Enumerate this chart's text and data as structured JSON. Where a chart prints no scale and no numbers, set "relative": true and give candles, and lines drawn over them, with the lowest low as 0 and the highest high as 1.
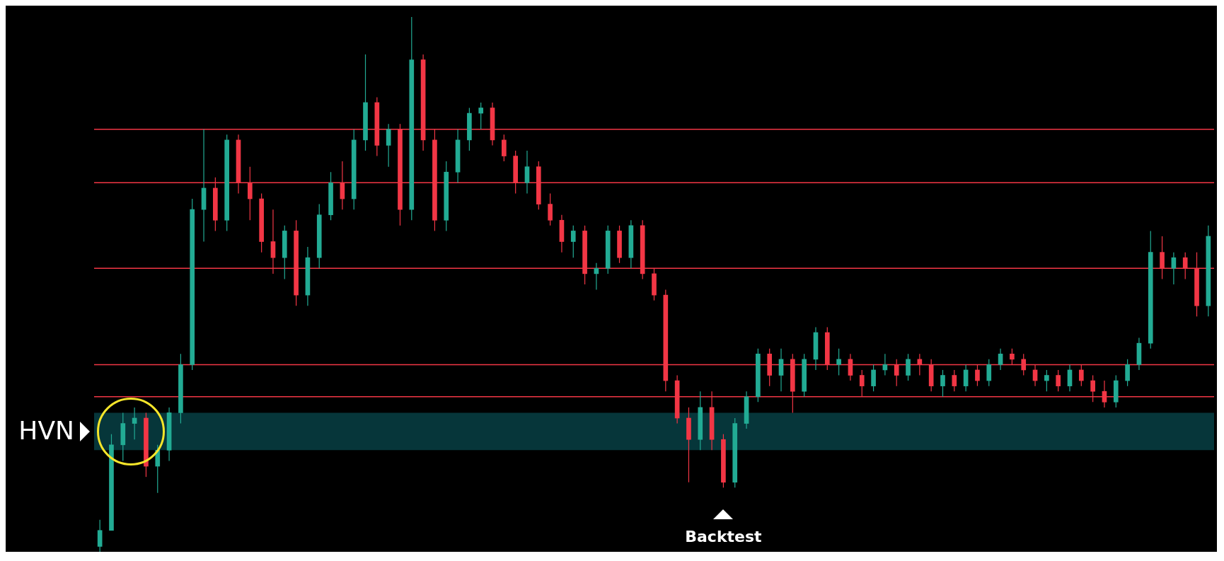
{
  "chart_data": {
    "type": "candlestick",
    "relative": true,
    "tick_labels": false,
    "categories": [
      null,
      null,
      null,
      null,
      null,
      null,
      null,
      null,
      null,
      null,
      null,
      null,
      null,
      null,
      null,
      null,
      null,
      null,
      null,
      null,
      null,
      null,
      null,
      null,
      null,
      null,
      null,
      null,
      null,
      null,
      null,
      null,
      null,
      null,
      null,
      null,
      null,
      null,
      null,
      null,
      null,
      null,
      null,
      null,
      null,
      null,
      null,
      null,
      null,
      null,
      null,
      null,
      null,
      null,
      null,
      null,
      null,
      null,
      null,
      null,
      null,
      null,
      null,
      null,
      null,
      null,
      null,
      null,
      null,
      null,
      null,
      null,
      null,
      null,
      null,
      null,
      null,
      null,
      null,
      null,
      null,
      null,
      null,
      null,
      null,
      null,
      null,
      null,
      null,
      null,
      null,
      null,
      null,
      null,
      null,
      null,
      null
    ],
    "ohlc": [
      [
        0.01,
        0.06,
        0,
        0.04
      ],
      [
        0.04,
        0.22,
        0.04,
        0.2
      ],
      [
        0.2,
        0.26,
        0.17,
        0.24
      ],
      [
        0.24,
        0.27,
        0.21,
        0.25
      ],
      [
        0.25,
        0.26,
        0.14,
        0.16
      ],
      [
        0.16,
        0.2,
        0.11,
        0.19
      ],
      [
        0.19,
        0.27,
        0.17,
        0.26
      ],
      [
        0.26,
        0.37,
        0.24,
        0.35
      ],
      [
        0.35,
        0.66,
        0.34,
        0.64
      ],
      [
        0.64,
        0.79,
        0.58,
        0.68
      ],
      [
        0.68,
        0.7,
        0.6,
        0.62
      ],
      [
        0.62,
        0.78,
        0.6,
        0.77
      ],
      [
        0.77,
        0.78,
        0.67,
        0.69
      ],
      [
        0.69,
        0.72,
        0.62,
        0.66
      ],
      [
        0.66,
        0.67,
        0.56,
        0.58
      ],
      [
        0.58,
        0.64,
        0.52,
        0.55
      ],
      [
        0.55,
        0.61,
        0.51,
        0.6
      ],
      [
        0.6,
        0.62,
        0.46,
        0.48
      ],
      [
        0.48,
        0.57,
        0.46,
        0.55
      ],
      [
        0.55,
        0.65,
        0.53,
        0.63
      ],
      [
        0.63,
        0.71,
        0.62,
        0.69
      ],
      [
        0.69,
        0.73,
        0.64,
        0.66
      ],
      [
        0.66,
        0.79,
        0.64,
        0.77
      ],
      [
        0.77,
        0.93,
        0.75,
        0.84
      ],
      [
        0.84,
        0.85,
        0.74,
        0.76
      ],
      [
        0.76,
        0.8,
        0.72,
        0.79
      ],
      [
        0.79,
        0.8,
        0.61,
        0.64
      ],
      [
        0.64,
        1.0,
        0.62,
        0.92
      ],
      [
        0.92,
        0.93,
        0.75,
        0.77
      ],
      [
        0.77,
        0.79,
        0.6,
        0.62
      ],
      [
        0.62,
        0.73,
        0.6,
        0.71
      ],
      [
        0.71,
        0.79,
        0.69,
        0.77
      ],
      [
        0.77,
        0.83,
        0.75,
        0.82
      ],
      [
        0.82,
        0.84,
        0.79,
        0.83
      ],
      [
        0.83,
        0.84,
        0.76,
        0.77
      ],
      [
        0.77,
        0.78,
        0.73,
        0.74
      ],
      [
        0.74,
        0.75,
        0.67,
        0.69
      ],
      [
        0.69,
        0.75,
        0.67,
        0.72
      ],
      [
        0.72,
        0.73,
        0.64,
        0.65
      ],
      [
        0.65,
        0.67,
        0.61,
        0.62
      ],
      [
        0.62,
        0.63,
        0.56,
        0.58
      ],
      [
        0.58,
        0.61,
        0.55,
        0.6
      ],
      [
        0.6,
        0.61,
        0.5,
        0.52
      ],
      [
        0.52,
        0.54,
        0.49,
        0.53
      ],
      [
        0.53,
        0.61,
        0.52,
        0.6
      ],
      [
        0.6,
        0.61,
        0.54,
        0.55
      ],
      [
        0.55,
        0.62,
        0.53,
        0.61
      ],
      [
        0.61,
        0.62,
        0.51,
        0.52
      ],
      [
        0.52,
        0.53,
        0.47,
        0.48
      ],
      [
        0.48,
        0.49,
        0.3,
        0.32
      ],
      [
        0.32,
        0.33,
        0.24,
        0.25
      ],
      [
        0.25,
        0.27,
        0.13,
        0.21
      ],
      [
        0.21,
        0.3,
        0.19,
        0.27
      ],
      [
        0.27,
        0.3,
        0.19,
        0.21
      ],
      [
        0.21,
        0.22,
        0.12,
        0.13
      ],
      [
        0.13,
        0.25,
        0.12,
        0.24
      ],
      [
        0.24,
        0.3,
        0.23,
        0.29
      ],
      [
        0.29,
        0.38,
        0.28,
        0.37
      ],
      [
        0.37,
        0.38,
        0.31,
        0.33
      ],
      [
        0.33,
        0.38,
        0.3,
        0.36
      ],
      [
        0.36,
        0.37,
        0.26,
        0.3
      ],
      [
        0.3,
        0.37,
        0.29,
        0.36
      ],
      [
        0.36,
        0.42,
        0.34,
        0.41
      ],
      [
        0.41,
        0.42,
        0.34,
        0.35
      ],
      [
        0.35,
        0.38,
        0.33,
        0.36
      ],
      [
        0.36,
        0.37,
        0.32,
        0.33
      ],
      [
        0.33,
        0.34,
        0.29,
        0.31
      ],
      [
        0.31,
        0.35,
        0.3,
        0.34
      ],
      [
        0.34,
        0.37,
        0.33,
        0.35
      ],
      [
        0.35,
        0.36,
        0.31,
        0.33
      ],
      [
        0.33,
        0.37,
        0.32,
        0.36
      ],
      [
        0.36,
        0.37,
        0.33,
        0.35
      ],
      [
        0.35,
        0.36,
        0.3,
        0.31
      ],
      [
        0.31,
        0.34,
        0.29,
        0.33
      ],
      [
        0.33,
        0.34,
        0.3,
        0.31
      ],
      [
        0.31,
        0.35,
        0.3,
        0.34
      ],
      [
        0.34,
        0.35,
        0.31,
        0.32
      ],
      [
        0.32,
        0.36,
        0.31,
        0.35
      ],
      [
        0.35,
        0.38,
        0.34,
        0.37
      ],
      [
        0.37,
        0.38,
        0.35,
        0.36
      ],
      [
        0.36,
        0.37,
        0.33,
        0.34
      ],
      [
        0.34,
        0.35,
        0.31,
        0.32
      ],
      [
        0.32,
        0.34,
        0.3,
        0.33
      ],
      [
        0.33,
        0.34,
        0.3,
        0.31
      ],
      [
        0.31,
        0.35,
        0.3,
        0.34
      ],
      [
        0.34,
        0.35,
        0.31,
        0.32
      ],
      [
        0.32,
        0.33,
        0.28,
        0.3
      ],
      [
        0.3,
        0.32,
        0.27,
        0.28
      ],
      [
        0.28,
        0.33,
        0.27,
        0.32
      ],
      [
        0.32,
        0.36,
        0.31,
        0.35
      ],
      [
        0.35,
        0.4,
        0.34,
        0.39
      ],
      [
        0.39,
        0.6,
        0.38,
        0.56
      ],
      [
        0.56,
        0.59,
        0.51,
        0.53
      ],
      [
        0.53,
        0.56,
        0.5,
        0.55
      ],
      [
        0.55,
        0.56,
        0.51,
        0.53
      ],
      [
        0.53,
        0.56,
        0.44,
        0.46
      ],
      [
        0.46,
        0.61,
        0.44,
        0.59
      ]
    ],
    "colors": [
      "#22ab94",
      "#22ab94",
      "#22ab94",
      "#22ab94",
      "#f23645",
      "#22ab94",
      "#22ab94",
      "#22ab94",
      "#22ab94",
      "#22ab94",
      "#f23645",
      "#22ab94",
      "#f23645",
      "#f23645",
      "#f23645",
      "#f23645",
      "#22ab94",
      "#f23645",
      "#22ab94",
      "#22ab94",
      "#22ab94",
      "#f23645",
      "#22ab94",
      "#22ab94",
      "#f23645",
      "#22ab94",
      "#f23645",
      "#22ab94",
      "#f23645",
      "#f23645",
      "#22ab94",
      "#22ab94",
      "#22ab94",
      "#22ab94",
      "#f23645",
      "#f23645",
      "#f23645",
      "#22ab94",
      "#f23645",
      "#f23645",
      "#f23645",
      "#22ab94",
      "#f23645",
      "#22ab94",
      "#22ab94",
      "#f23645",
      "#22ab94",
      "#f23645",
      "#f23645",
      "#f23645",
      "#f23645",
      "#f23645",
      "#22ab94",
      "#f23645",
      "#f23645",
      "#22ab94",
      "#22ab94",
      "#22ab94",
      "#f23645",
      "#22ab94",
      "#f23645",
      "#22ab94",
      "#22ab94",
      "#f23645",
      "#22ab94",
      "#f23645",
      "#f23645",
      "#22ab94",
      "#22ab94",
      "#f23645",
      "#22ab94",
      "#f23645",
      "#f23645",
      "#22ab94",
      "#f23645",
      "#22ab94",
      "#f23645",
      "#22ab94",
      "#22ab94",
      "#f23645",
      "#f23645",
      "#f23645",
      "#22ab94",
      "#f23645",
      "#22ab94",
      "#f23645",
      "#f23645",
      "#f23645",
      "#22ab94",
      "#22ab94",
      "#22ab94",
      "#22ab94",
      "#f23645",
      "#22ab94",
      "#f23645",
      "#f23645",
      "#22ab94"
    ],
    "bands": [
      {
        "axis": "y",
        "from": 0.19,
        "to": 0.26,
        "color": "#06363a"
      }
    ],
    "ref_lines": [
      {
        "axis": "y",
        "value": 0.69,
        "color": "#f23645"
      },
      {
        "axis": "y",
        "value": 0.79,
        "color": "#f23645"
      },
      {
        "axis": "y",
        "value": 0.29,
        "color": "#f23645"
      },
      {
        "axis": "y",
        "value": 0.35,
        "color": "#f23645"
      },
      {
        "axis": "y",
        "value": 0.53,
        "color": "#f23645"
      }
    ],
    "annotations": [
      "HVN",
      "Backtest"
    ]
  }
}
